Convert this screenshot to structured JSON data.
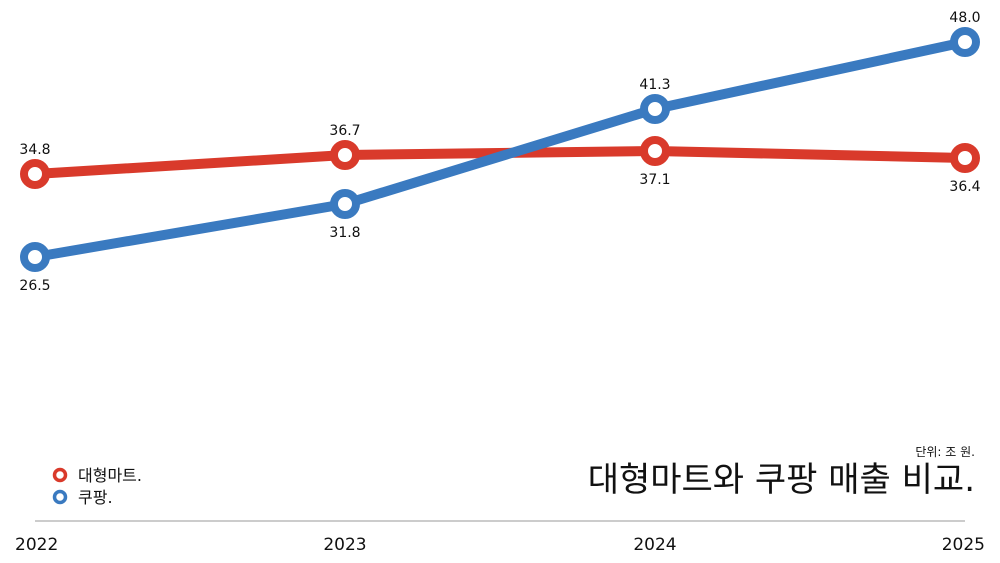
{
  "chart_data": {
    "type": "line",
    "title": "대형마트와 쿠팡 매출 비교.",
    "unit_note": "단위: 조 원.",
    "categories": [
      "2022",
      "2023",
      "2024",
      "2025"
    ],
    "series": [
      {
        "name": "대형마트.",
        "values": [
          34.8,
          36.7,
          37.1,
          36.4
        ],
        "color": "#d93a2b"
      },
      {
        "name": "쿠팡.",
        "values": [
          26.5,
          31.8,
          41.3,
          48.0
        ],
        "color": "#3a7ac0"
      }
    ],
    "legend_position": "bottom-left",
    "grid": false
  }
}
